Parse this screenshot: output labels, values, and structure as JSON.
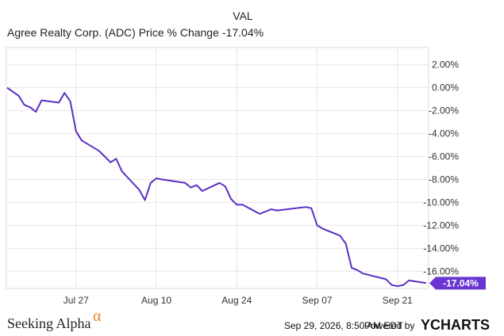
{
  "legend": {
    "header": "VAL",
    "series_label": "Agree Realty Corp. (ADC) Price % Change",
    "series_value": "-17.04%"
  },
  "colors": {
    "line": "#5b2fc4",
    "end_tag": "#6a35d0",
    "grid": "#e6e6e6",
    "alpha_symbol": "#e8842a"
  },
  "footer": {
    "brand": "Seeking Alpha",
    "brand_symbol": "α",
    "timestamp": "Sep 29, 2026, 8:50 AM EDT",
    "powered_by": "Powered by",
    "provider": "YCHARTS"
  },
  "chart_data": {
    "type": "line",
    "title": "",
    "xlabel": "",
    "ylabel": "",
    "x_ticks": [
      "Jul 27",
      "Aug 10",
      "Aug 24",
      "Sep 07",
      "Sep 21"
    ],
    "y_ticks": [
      "2.00%",
      "0.00%",
      "-2.00%",
      "-4.00%",
      "-6.00%",
      "-8.00%",
      "-10.00%",
      "-12.00%",
      "-14.00%",
      "-16.00%"
    ],
    "ylim": [
      -17.5,
      3.5
    ],
    "y_unit": "%",
    "grid": true,
    "end_label": "-17.04%",
    "series": [
      {
        "name": "Agree Realty Corp. (ADC) Price % Change",
        "points": [
          [
            "2026-07-15",
            0.0
          ],
          [
            "2026-07-17",
            -0.7
          ],
          [
            "2026-07-18",
            -1.5
          ],
          [
            "2026-07-19",
            -1.7
          ],
          [
            "2026-07-20",
            -2.1
          ],
          [
            "2026-07-21",
            -1.1
          ],
          [
            "2026-07-24",
            -1.3
          ],
          [
            "2026-07-25",
            -0.45
          ],
          [
            "2026-07-26",
            -1.2
          ],
          [
            "2026-07-27",
            -3.8
          ],
          [
            "2026-07-28",
            -4.6
          ],
          [
            "2026-07-31",
            -5.5
          ],
          [
            "2026-08-01",
            -6.0
          ],
          [
            "2026-08-02",
            -6.5
          ],
          [
            "2026-08-03",
            -6.2
          ],
          [
            "2026-08-04",
            -7.3
          ],
          [
            "2026-08-07",
            -8.9
          ],
          [
            "2026-08-08",
            -9.8
          ],
          [
            "2026-08-09",
            -8.3
          ],
          [
            "2026-08-10",
            -7.9
          ],
          [
            "2026-08-11",
            -8.0
          ],
          [
            "2026-08-15",
            -8.3
          ],
          [
            "2026-08-16",
            -8.7
          ],
          [
            "2026-08-17",
            -8.5
          ],
          [
            "2026-08-18",
            -9.0
          ],
          [
            "2026-08-21",
            -8.3
          ],
          [
            "2026-08-22",
            -8.6
          ],
          [
            "2026-08-23",
            -9.7
          ],
          [
            "2026-08-24",
            -10.2
          ],
          [
            "2026-08-25",
            -10.2
          ],
          [
            "2026-08-28",
            -11.0
          ],
          [
            "2026-08-29",
            -10.8
          ],
          [
            "2026-08-30",
            -10.6
          ],
          [
            "2026-08-31",
            -10.7
          ],
          [
            "2026-09-05",
            -10.4
          ],
          [
            "2026-09-06",
            -10.5
          ],
          [
            "2026-09-07",
            -12.0
          ],
          [
            "2026-09-08",
            -12.3
          ],
          [
            "2026-09-11",
            -12.9
          ],
          [
            "2026-09-12",
            -13.6
          ],
          [
            "2026-09-13",
            -15.7
          ],
          [
            "2026-09-14",
            -15.9
          ],
          [
            "2026-09-15",
            -16.2
          ],
          [
            "2026-09-19",
            -16.7
          ],
          [
            "2026-09-20",
            -17.2
          ],
          [
            "2026-09-21",
            -17.3
          ],
          [
            "2026-09-22",
            -17.2
          ],
          [
            "2026-09-23",
            -16.8
          ],
          [
            "2026-09-26",
            -17.04
          ]
        ]
      }
    ]
  }
}
